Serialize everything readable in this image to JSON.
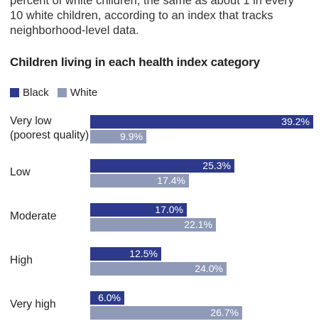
{
  "intro": {
    "line1": "percent of white children, the same as about 1 in every",
    "line2": "10 white children, according to an index that tracks",
    "line3": "neighborhood-level data."
  },
  "chart_data": {
    "type": "bar",
    "orientation": "horizontal",
    "title": "Children living in each health index category",
    "categories": [
      "Very low\n(poorest quality)",
      "Low",
      "Moderate",
      "High",
      "Very high"
    ],
    "series": [
      {
        "name": "Black",
        "values": [
          39.2,
          25.3,
          17.0,
          12.5,
          6.0
        ],
        "labels": [
          "39.2%",
          "25.3%",
          "17.0%",
          "12.5%",
          "6.0%"
        ],
        "color": "#2d3a8c"
      },
      {
        "name": "White",
        "values": [
          9.9,
          17.4,
          22.1,
          24.0,
          26.7
        ],
        "labels": [
          "9.9%",
          "17.4%",
          "22.1%",
          "24.0%",
          "26.7%"
        ],
        "color": "#8f9ab8"
      }
    ],
    "xlim": [
      0,
      39.2
    ],
    "legend": "top-left",
    "grid": false
  }
}
